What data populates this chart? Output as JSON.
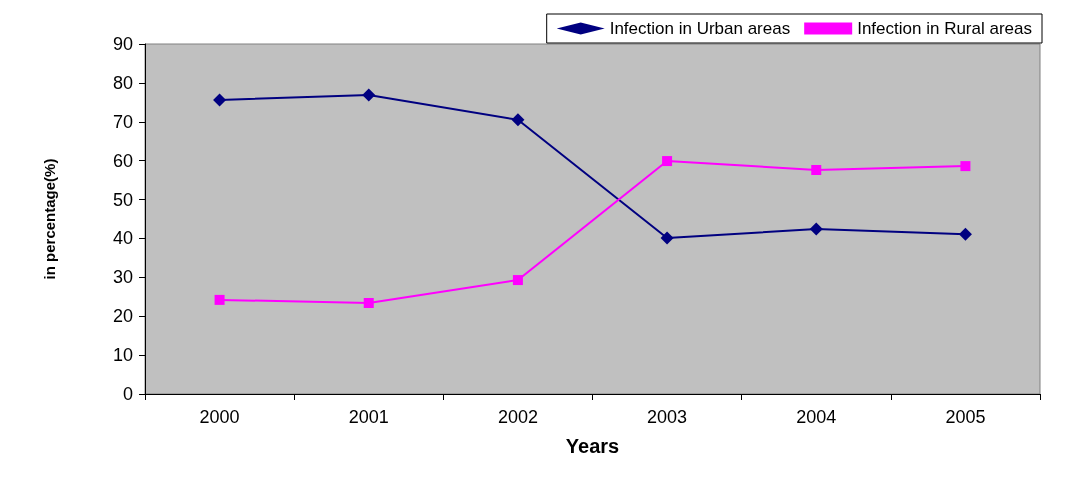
{
  "chart_data": {
    "type": "line",
    "xlabel": "Years",
    "ylabel": "in percentage(%)",
    "categories": [
      "2000",
      "2001",
      "2002",
      "2003",
      "2004",
      "2005"
    ],
    "series": [
      {
        "name": "Infection in Urban areas",
        "color": "#000080",
        "marker": "diamond",
        "values": [
          75.6,
          76.9,
          70.5,
          40.1,
          42.4,
          41.1
        ]
      },
      {
        "name": "Infection in Rural areas",
        "color": "#ff00ff",
        "marker": "square",
        "values": [
          24.2,
          23.4,
          29.3,
          59.9,
          57.6,
          58.6
        ]
      }
    ],
    "ylim": [
      0,
      90
    ],
    "yticks": [
      0,
      10,
      20,
      30,
      40,
      50,
      60,
      70,
      80,
      90
    ],
    "grid": false,
    "legend": "top right"
  }
}
